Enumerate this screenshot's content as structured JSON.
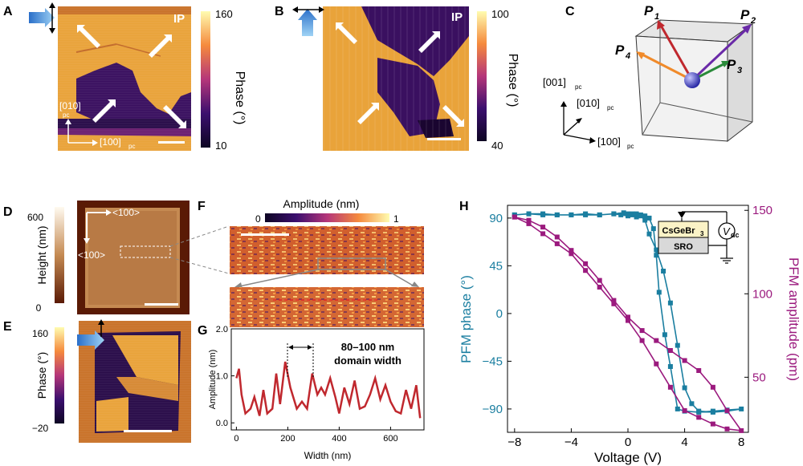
{
  "panels": {
    "A": {
      "letter": "A",
      "ip": "IP",
      "axis_x": "[100]",
      "axis_y": "[010]",
      "pc": "pc",
      "cbar_label": "Phase (°)",
      "cbar_max": "160",
      "cbar_min": "10"
    },
    "B": {
      "letter": "B",
      "ip": "IP",
      "cbar_label": "Phase (°)",
      "cbar_max": "100",
      "cbar_min": "40"
    },
    "C": {
      "letter": "C",
      "p1": "P",
      "p1_sub": "1",
      "p2": "P",
      "p2_sub": "2",
      "p3": "P",
      "p3_sub": "3",
      "p4": "P",
      "p4_sub": "4",
      "ax1": "[001]",
      "ax2": "[010]",
      "ax3": "[100]",
      "pc": "pc"
    },
    "D": {
      "letter": "D",
      "cbar_label": "Height (nm)",
      "cbar_max": "600",
      "cbar_min": "0",
      "dir_h": "<100>",
      "dir_v": "<100>"
    },
    "E": {
      "letter": "E",
      "cbar_label": "Phase (°)",
      "cbar_max": "160",
      "cbar_min": "−20"
    },
    "F": {
      "letter": "F",
      "cbar_label": "Amplitude (nm)",
      "cbar_min": "0",
      "cbar_max": "1"
    },
    "G": {
      "letter": "G",
      "annotation_line1": "80–100 nm",
      "annotation_line2": "domain width"
    },
    "H": {
      "letter": "H",
      "inset_top": "CsGeBr",
      "inset_top_sub": "3",
      "inset_bottom": "SRO",
      "inset_v": "V",
      "inset_v_sub": "dc"
    }
  },
  "chart_data": [
    {
      "panel": "G",
      "type": "line",
      "xlabel": "Width (nm)",
      "ylabel": "Amplitude (nm)",
      "xlim": [
        -20,
        730
      ],
      "ylim": [
        -0.15,
        2.0
      ],
      "xticks": [
        "0",
        "200",
        "400",
        "600"
      ],
      "yticks": [
        "0.0",
        "1.0",
        "2.0"
      ],
      "color": "#c0282e",
      "x": [
        0,
        10,
        20,
        35,
        55,
        70,
        90,
        105,
        120,
        140,
        155,
        170,
        190,
        210,
        235,
        255,
        275,
        295,
        315,
        330,
        345,
        365,
        385,
        400,
        420,
        440,
        460,
        480,
        500,
        520,
        540,
        560,
        580,
        600,
        620,
        640,
        660,
        680,
        700,
        715
      ],
      "y": [
        0.95,
        1.15,
        0.6,
        0.2,
        0.3,
        0.55,
        0.15,
        0.7,
        0.2,
        0.3,
        1.05,
        0.4,
        1.3,
        0.75,
        0.3,
        0.45,
        0.3,
        1.05,
        0.6,
        0.75,
        0.6,
        0.95,
        0.55,
        0.2,
        0.75,
        0.4,
        0.9,
        0.3,
        0.35,
        0.6,
        0.95,
        0.5,
        0.8,
        0.45,
        0.25,
        0.2,
        0.7,
        0.3,
        0.8,
        0.1
      ]
    },
    {
      "panel": "H",
      "type": "line",
      "xlabel": "Voltage (V)",
      "ylabel": "PFM phase (°)",
      "ylabel_right": "PFM amplitude (pm)",
      "xlim": [
        -8.5,
        8.5
      ],
      "ylim": [
        -112,
        102
      ],
      "ylim_right": [
        17,
        153
      ],
      "xticks": [
        "−8",
        "−4",
        "0",
        "4",
        "8"
      ],
      "yticks": [
        "90",
        "45",
        "0",
        "−45",
        "−90"
      ],
      "yticks_right": [
        "150",
        "100",
        "50"
      ],
      "series": [
        {
          "color": "#1a7ea0",
          "x": [
            -8,
            -7,
            -6,
            -5,
            -4,
            -3,
            -2,
            -1,
            -0.5,
            0,
            0.3,
            0.6,
            0.9,
            1.2,
            1.5,
            2,
            2.5,
            3,
            3.5,
            4,
            4.5,
            5,
            6,
            7,
            8,
            7,
            6,
            5,
            4,
            3.5,
            3,
            2.6,
            2.2,
            2,
            1.8,
            1.5,
            1.2,
            0.9,
            0.6,
            0.3,
            0,
            -0.3,
            -1,
            -2,
            -3,
            -4,
            -5,
            -6,
            -7,
            -8
          ],
          "y": [
            93,
            94,
            94,
            93,
            93,
            94,
            93,
            94,
            93,
            92,
            93,
            91,
            92,
            88,
            75,
            60,
            40,
            10,
            -30,
            -70,
            -85,
            -92,
            -93,
            -92,
            -90,
            -91,
            -92,
            -93,
            -92,
            -90,
            -50,
            -20,
            20,
            55,
            80,
            90,
            92,
            93,
            94,
            94,
            94,
            95,
            94,
            93,
            93,
            93,
            93,
            93,
            94,
            93
          ]
        },
        {
          "color": "#9b1a7e",
          "x": [
            -8,
            -7,
            -6,
            -5,
            -4,
            -3,
            -2,
            -1,
            0,
            1,
            2,
            3,
            4,
            5,
            6,
            7,
            8,
            7,
            6,
            5,
            4,
            3,
            2,
            1,
            0,
            -1,
            -2,
            -3,
            -4,
            -5,
            -6,
            -7,
            -8
          ],
          "y": [
            146,
            142,
            136,
            130,
            124,
            114,
            104,
            94,
            84,
            72,
            58,
            44,
            30,
            26,
            22,
            19,
            18,
            30,
            44,
            54,
            60,
            66,
            72,
            78,
            86,
            96,
            108,
            118,
            126,
            134,
            140,
            144,
            146
          ]
        }
      ]
    }
  ]
}
